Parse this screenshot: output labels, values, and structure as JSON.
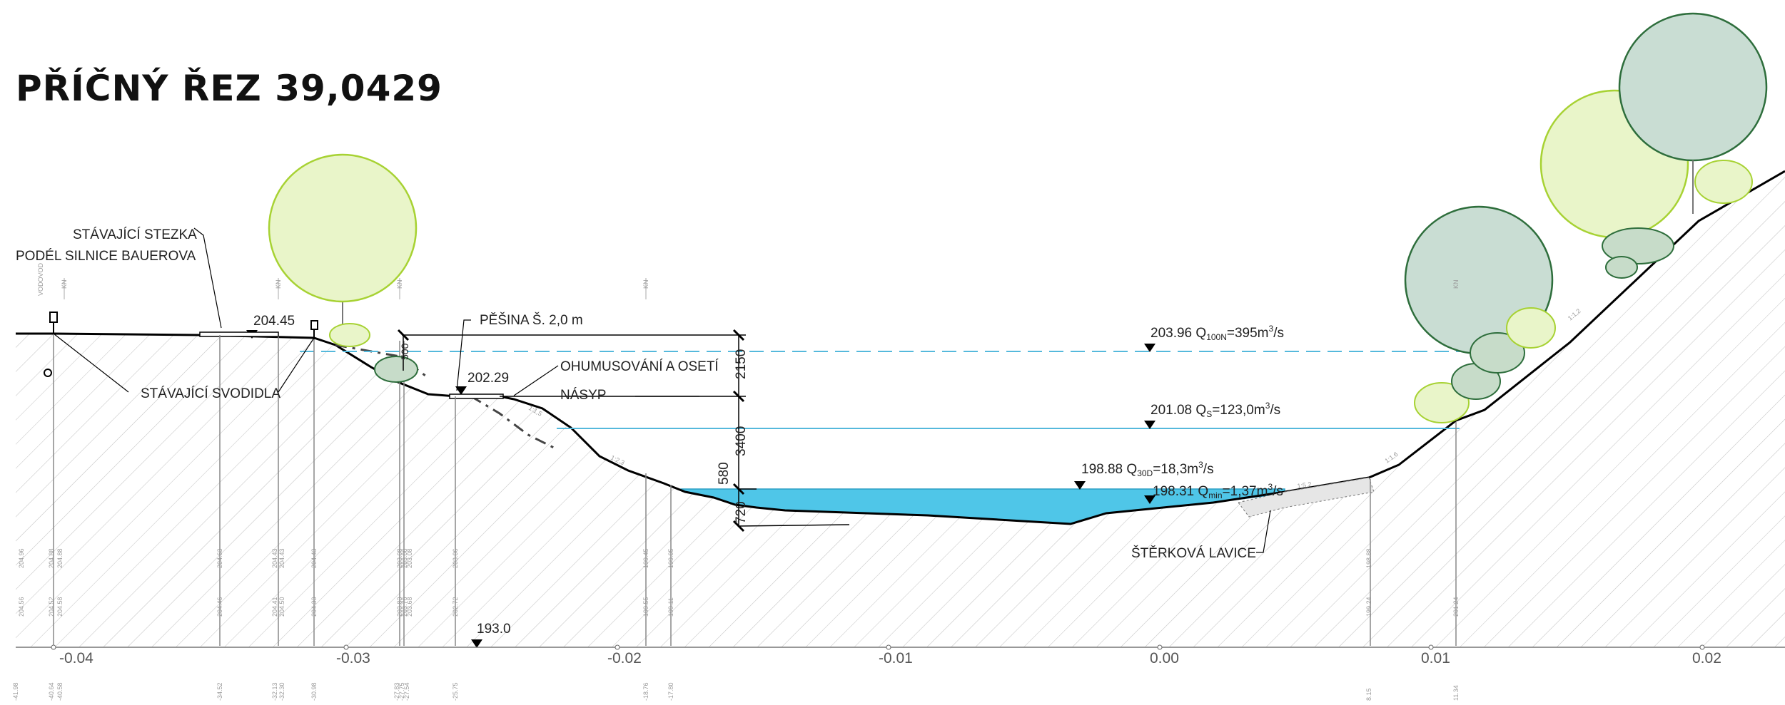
{
  "title": "PŘÍČNÝ ŘEZ  39,0429",
  "labels": {
    "path_existing_1": "STÁVAJÍCÍ STEZKA",
    "path_existing_2": "PODÉL SILNICE BAUEROVA",
    "guardrails": "STÁVAJÍCÍ SVODIDLA",
    "footpath": "PĚŠINA Š. 2,0 m",
    "topsoil": "OHUMUSOVÁNÍ A OSETÍ",
    "embankment": "NÁSYP",
    "gravel_bar": "ŠTĚRKOVÁ LAVICE",
    "elev_path": "204.45",
    "elev_footpath": "202.29",
    "elev_bottom": "193.0",
    "q100_level": "203.96",
    "q100_text": "=395m",
    "qs_level": "201.08",
    "qs_text": "=123,0m",
    "q30d_level": "198.88",
    "q30d_text": "=18,3m",
    "qmin_level": "198.31",
    "qmin_text": "=1,37m",
    "unit_exp": "3",
    "unit_tail": "/s",
    "sub_100n": "100N",
    "sub_s": "S",
    "sub_30d": "30D",
    "sub_min": "min",
    "q_letter": "Q"
  },
  "dimensions": {
    "d500": "500",
    "d2150": "2150",
    "d3400": "3400",
    "d580": "580",
    "d720": "720"
  },
  "slopes": {
    "s1": "1:1,5",
    "s2": "1:2,3",
    "s3": "1:5,2",
    "s4": "1:1,6",
    "s5": "1:1,2"
  },
  "markers": {
    "voda": "VODOVOD",
    "kn1": "KN",
    "kn2": "KN",
    "kn3": "KN",
    "kn4": "KN",
    "kn5": "KN"
  },
  "table_top": [
    "204.96",
    "204.88",
    "204.88",
    "204.63",
    "204.43",
    "204.43",
    "204.43",
    "203.08",
    "203.08",
    "203.08",
    "203.06",
    "199.45",
    "199.05",
    "198.88"
  ],
  "table_mid": [
    "204.56",
    "204.52",
    "204.58",
    "204.46",
    "204.41",
    "204.50",
    "204.33",
    "203.83",
    "203.76",
    "203.68",
    "202.72",
    "199.55",
    "199.11",
    "199.24",
    "201.24"
  ],
  "table_bottom": [
    "-41.98",
    "-40.64",
    "-40.58",
    "-34.52",
    "-32.13",
    "-32.30",
    "-30.98",
    "-27.83",
    "-27.75",
    "-27.54",
    "-25.75",
    "-18.76",
    "-17.80",
    "8.15",
    "11.34"
  ],
  "x_axis": [
    "-0.04",
    "-0.03",
    "-0.02",
    "-0.01",
    "0.00",
    "0.01",
    "0.02"
  ],
  "colors": {
    "water": "#4fc6e8",
    "water_line": "#3aa9cc",
    "tree_light": "#e9f5c9",
    "tree_light_stroke": "#a7d233",
    "tree_dark": "#c9ddd3",
    "tree_dark_stroke": "#2e6e3c",
    "shrub": "#c7dcc9",
    "hatch": "#bdbdbd"
  }
}
